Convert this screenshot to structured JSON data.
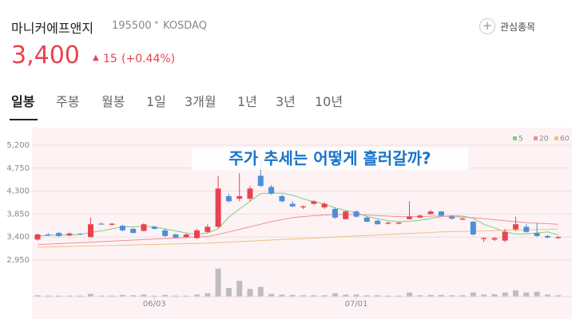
{
  "header": {
    "name": "마니커에프앤지",
    "code": "195500",
    "market": "KOSDAQ",
    "watch": "관심종목",
    "price": "3,400",
    "change": "15",
    "change_pct": "(+0.44%)"
  },
  "tabs": [
    "일봉",
    "주봉",
    "월봉",
    "1일",
    "3개월",
    "1년",
    "3년",
    "10년"
  ],
  "chart_data": {
    "type": "candlestick",
    "title": "주가 추세는 어떻게 흘러갈까?",
    "categories": [
      null,
      null,
      null,
      null,
      null,
      null,
      null,
      null,
      null,
      null,
      null,
      "06/03",
      null,
      null,
      null,
      null,
      null,
      null,
      null,
      null,
      null,
      null,
      null,
      null,
      null,
      null,
      null,
      null,
      null,
      null,
      "07/01",
      null,
      null,
      null,
      null,
      null,
      null,
      null,
      null,
      null,
      null,
      null,
      null,
      null,
      null,
      null,
      null,
      null,
      null,
      null
    ],
    "open": [
      3350,
      3450,
      3480,
      3430,
      3460,
      3400,
      3660,
      3640,
      3620,
      3560,
      3520,
      3600,
      3530,
      3450,
      3400,
      3380,
      3500,
      3600,
      4200,
      4150,
      4150,
      4600,
      4380,
      4200,
      4050,
      3980,
      4050,
      3980,
      3950,
      3750,
      3900,
      3780,
      3720,
      3660,
      3660,
      3750,
      3780,
      3850,
      3900,
      3800,
      3740,
      3700,
      3360,
      3350,
      3330,
      3550,
      3600,
      3480,
      3420,
      3380
    ],
    "high": [
      3470,
      3480,
      3500,
      3490,
      3480,
      3780,
      3690,
      3680,
      3640,
      3580,
      3670,
      3620,
      3560,
      3470,
      3470,
      3560,
      3650,
      4600,
      4250,
      4650,
      4400,
      4900,
      4420,
      4230,
      4100,
      4020,
      4120,
      4080,
      3980,
      3920,
      3920,
      3800,
      3740,
      3700,
      3690,
      4100,
      3840,
      3930,
      3910,
      3830,
      3780,
      3720,
      3400,
      3400,
      3560,
      3800,
      3650,
      3680,
      3440,
      3420
    ],
    "low": [
      3330,
      3420,
      3400,
      3420,
      3440,
      3390,
      3640,
      3620,
      3510,
      3470,
      3510,
      3550,
      3400,
      3380,
      3380,
      3360,
      3480,
      3580,
      4080,
      4100,
      4100,
      4380,
      4230,
      4080,
      3980,
      3950,
      4030,
      3950,
      3760,
      3740,
      3780,
      3690,
      3640,
      3650,
      3650,
      3740,
      3770,
      3840,
      3810,
      3740,
      3730,
      3430,
      3300,
      3320,
      3300,
      3520,
      3480,
      3400,
      3370,
      3360
    ],
    "close": [
      3450,
      3440,
      3420,
      3470,
      3450,
      3650,
      3650,
      3660,
      3530,
      3480,
      3650,
      3560,
      3420,
      3390,
      3450,
      3530,
      3600,
      4350,
      4100,
      4200,
      4350,
      4400,
      4250,
      4100,
      4000,
      4000,
      4100,
      4050,
      3780,
      3900,
      3800,
      3700,
      3650,
      3680,
      3680,
      3800,
      3820,
      3900,
      3820,
      3760,
      3760,
      3450,
      3380,
      3380,
      3500,
      3650,
      3500,
      3420,
      3390,
      3400
    ],
    "up_color": "#e8434f",
    "down_color": "#4a90d9",
    "series": [
      {
        "name": "5",
        "color": "#7ccf7c",
        "values": [
          3420,
          3430,
          3440,
          3440,
          3450,
          3490,
          3520,
          3560,
          3600,
          3600,
          3610,
          3600,
          3560,
          3520,
          3480,
          3450,
          3480,
          3560,
          3790,
          3950,
          4100,
          4250,
          4260,
          4260,
          4220,
          4150,
          4090,
          4050,
          3970,
          3920,
          3880,
          3800,
          3760,
          3720,
          3700,
          3710,
          3730,
          3760,
          3800,
          3820,
          3810,
          3770,
          3650,
          3580,
          3500,
          3460,
          3460,
          3480,
          3500,
          3440
        ]
      },
      {
        "name": "20",
        "color": "#ef8f98",
        "values": [
          3250,
          3260,
          3270,
          3280,
          3290,
          3300,
          3310,
          3320,
          3330,
          3340,
          3350,
          3360,
          3370,
          3380,
          3390,
          3400,
          3410,
          3450,
          3500,
          3550,
          3600,
          3650,
          3700,
          3740,
          3780,
          3800,
          3820,
          3830,
          3840,
          3840,
          3840,
          3830,
          3820,
          3810,
          3800,
          3800,
          3800,
          3810,
          3810,
          3800,
          3790,
          3780,
          3760,
          3740,
          3720,
          3700,
          3680,
          3670,
          3660,
          3650
        ]
      },
      {
        "name": "60",
        "color": "#f0c080",
        "values": [
          3200,
          3205,
          3210,
          3215,
          3220,
          3225,
          3230,
          3235,
          3240,
          3245,
          3250,
          3255,
          3260,
          3265,
          3270,
          3275,
          3280,
          3290,
          3300,
          3310,
          3320,
          3330,
          3340,
          3350,
          3360,
          3370,
          3380,
          3390,
          3400,
          3410,
          3420,
          3430,
          3440,
          3450,
          3460,
          3470,
          3480,
          3490,
          3500,
          3505,
          3510,
          3515,
          3520,
          3525,
          3530,
          3535,
          3540,
          3545,
          3550,
          3555
        ]
      }
    ],
    "volume": [
      4,
      3,
      3,
      3,
      3,
      8,
      3,
      3,
      5,
      4,
      6,
      3,
      5,
      3,
      3,
      6,
      10,
      80,
      25,
      45,
      22,
      28,
      8,
      6,
      5,
      4,
      4,
      4,
      10,
      6,
      6,
      4,
      4,
      3,
      3,
      12,
      4,
      5,
      5,
      4,
      4,
      12,
      6,
      7,
      12,
      18,
      12,
      14,
      6,
      4
    ],
    "volume_color": "#bdbdbd",
    "volume_lim": [
      0,
      100
    ],
    "ylim": [
      2950,
      5200
    ],
    "yticks": [
      {
        "value": 5200,
        "label": "5,200"
      },
      {
        "value": 4750,
        "label": "4,750"
      },
      {
        "value": 4300,
        "label": "4,300"
      },
      {
        "value": 3850,
        "label": "3,850"
      },
      {
        "value": 3400,
        "label": "3,400"
      },
      {
        "value": 2950,
        "label": "2,950"
      }
    ]
  }
}
